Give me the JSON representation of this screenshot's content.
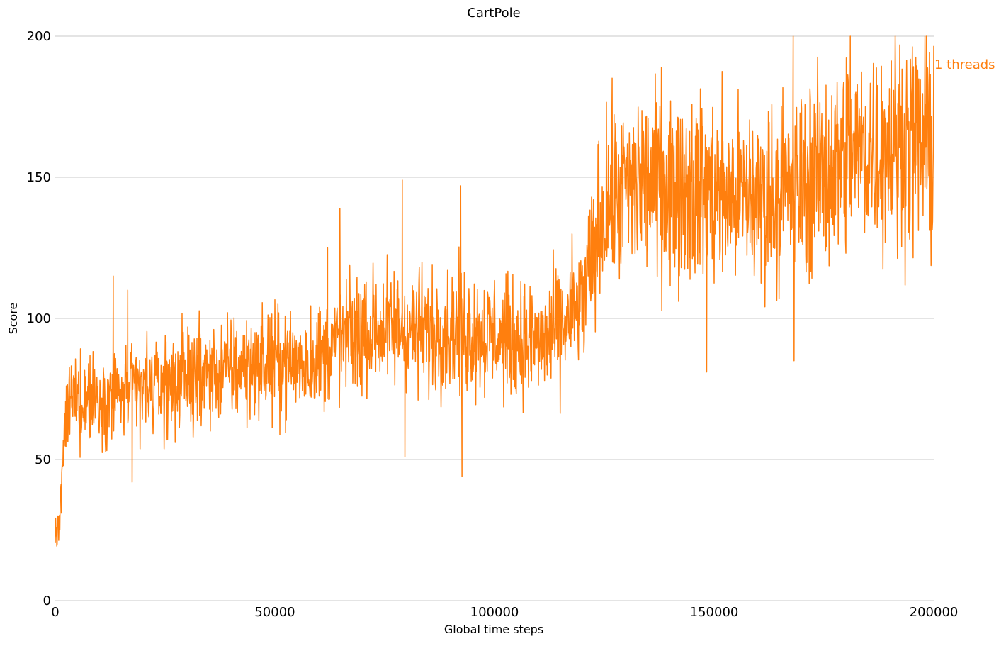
{
  "chart_data": {
    "type": "line",
    "title": "CartPole",
    "xlabel": "Global time steps",
    "ylabel": "Score",
    "xlim": [
      0,
      200000
    ],
    "ylim": [
      0,
      200
    ],
    "x_ticks": [
      "0",
      "50000",
      "100000",
      "150000",
      "200000"
    ],
    "y_ticks": [
      "0",
      "50",
      "100",
      "150",
      "200"
    ],
    "grid": "horizontal",
    "legend_placement": "right end of line",
    "series": [
      {
        "name": "1 threads",
        "color": "#ff7f0e",
        "anchors": [
          [
            0,
            22
          ],
          [
            1000,
            30
          ],
          [
            2000,
            55
          ],
          [
            3000,
            70
          ],
          [
            5000,
            72
          ],
          [
            10000,
            72
          ],
          [
            15000,
            73
          ],
          [
            20000,
            75
          ],
          [
            25000,
            76
          ],
          [
            30000,
            79
          ],
          [
            40000,
            82
          ],
          [
            50000,
            84
          ],
          [
            55000,
            84
          ],
          [
            60000,
            86
          ],
          [
            65000,
            92
          ],
          [
            70000,
            95
          ],
          [
            75000,
            96
          ],
          [
            80000,
            97
          ],
          [
            85000,
            95
          ],
          [
            90000,
            97
          ],
          [
            95000,
            95
          ],
          [
            100000,
            94
          ],
          [
            105000,
            92
          ],
          [
            110000,
            91
          ],
          [
            115000,
            96
          ],
          [
            120000,
            105
          ],
          [
            123000,
            125
          ],
          [
            125000,
            140
          ],
          [
            130000,
            145
          ],
          [
            135000,
            148
          ],
          [
            140000,
            147
          ],
          [
            145000,
            147
          ],
          [
            150000,
            145
          ],
          [
            155000,
            143
          ],
          [
            160000,
            143
          ],
          [
            165000,
            145
          ],
          [
            170000,
            148
          ],
          [
            175000,
            152
          ],
          [
            180000,
            158
          ],
          [
            185000,
            160
          ],
          [
            190000,
            162
          ],
          [
            195000,
            163
          ],
          [
            200000,
            160
          ]
        ],
        "noise_amplitude": 0.14,
        "spikes": [
          [
            13200,
            115
          ],
          [
            16500,
            110
          ],
          [
            17500,
            42
          ],
          [
            62000,
            125
          ],
          [
            64800,
            139
          ],
          [
            79000,
            149
          ],
          [
            79600,
            51
          ],
          [
            92300,
            147
          ],
          [
            92600,
            44
          ],
          [
            138000,
            189
          ],
          [
            148300,
            81
          ],
          [
            168000,
            200
          ],
          [
            168200,
            85
          ],
          [
            181000,
            200
          ],
          [
            198000,
            200
          ],
          [
            199200,
            132
          ]
        ]
      }
    ]
  }
}
